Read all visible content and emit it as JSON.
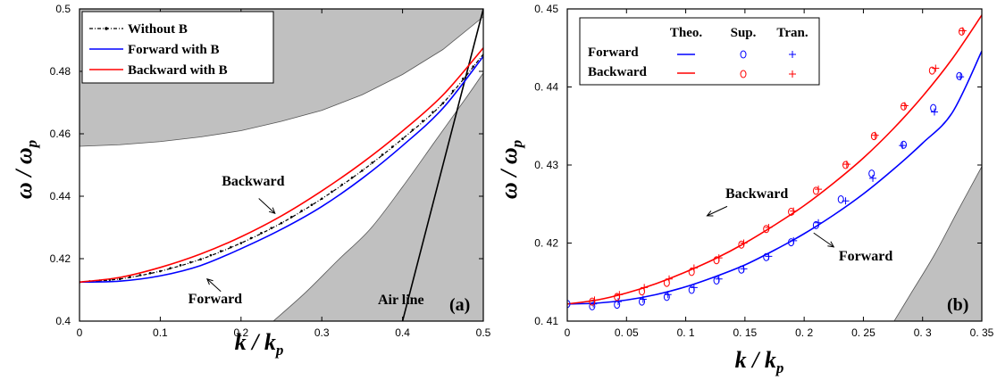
{
  "chart_data": [
    {
      "type": "line",
      "panel_label": "(a)",
      "xlabel": "k / k",
      "xlabel_sub": "p",
      "ylabel": "ω / ω",
      "ylabel_sub": "p",
      "xlim": [
        0,
        0.5
      ],
      "ylim": [
        0.4,
        0.5
      ],
      "xticks": [
        0,
        0.1,
        0.2,
        0.3,
        0.4,
        0.5
      ],
      "xtick_labels": [
        "0",
        "0.1",
        "0.2",
        "0.3",
        "0.4",
        "0.5"
      ],
      "yticks": [
        0.4,
        0.42,
        0.44,
        0.46,
        0.48,
        0.5
      ],
      "ytick_labels": [
        "0.4",
        "0.42",
        "0.44",
        "0.46",
        "0.48",
        "0.5"
      ],
      "legend_position": "top-left",
      "series": [
        {
          "name": "Without B",
          "color": "#000000",
          "style": "dash-dot-marker",
          "x": [
            0,
            0.05,
            0.1,
            0.15,
            0.2,
            0.25,
            0.3,
            0.35,
            0.4,
            0.45,
            0.5
          ],
          "y": [
            0.4125,
            0.4135,
            0.416,
            0.4198,
            0.425,
            0.4314,
            0.4392,
            0.4482,
            0.4584,
            0.4698,
            0.4855
          ]
        },
        {
          "name": "Forward with B",
          "color": "#0000ff",
          "style": "solid",
          "x": [
            0,
            0.05,
            0.1,
            0.15,
            0.2,
            0.25,
            0.3,
            0.35,
            0.4,
            0.45,
            0.5
          ],
          "y": [
            0.4125,
            0.4128,
            0.4145,
            0.4178,
            0.4232,
            0.4294,
            0.4367,
            0.4457,
            0.4562,
            0.4682,
            0.4848
          ]
        },
        {
          "name": "Backward with B",
          "color": "#ff0000",
          "style": "solid",
          "x": [
            0,
            0.05,
            0.1,
            0.15,
            0.2,
            0.25,
            0.3,
            0.35,
            0.4,
            0.45,
            0.5
          ],
          "y": [
            0.4125,
            0.414,
            0.4172,
            0.4215,
            0.427,
            0.4337,
            0.4417,
            0.4507,
            0.4609,
            0.4724,
            0.4875
          ]
        }
      ],
      "shaded_regions": [
        {
          "x": [
            0,
            0.05,
            0.1,
            0.15,
            0.2,
            0.25,
            0.3,
            0.35,
            0.4,
            0.45,
            0.5
          ],
          "lower": [
            0.456,
            0.4565,
            0.4575,
            0.459,
            0.461,
            0.464,
            0.4675,
            0.4725,
            0.479,
            0.487,
            0.4975
          ],
          "upper": [
            0.5,
            0.5,
            0.5,
            0.5,
            0.5,
            0.5,
            0.5,
            0.5,
            0.5,
            0.5,
            0.5
          ]
        },
        {
          "x": [
            0.24,
            0.28,
            0.32,
            0.36,
            0.4,
            0.44,
            0.48,
            0.5
          ],
          "lower": [
            0.4,
            0.4,
            0.4,
            0.4,
            0.4,
            0.4,
            0.4,
            0.4
          ],
          "upper": [
            0.4,
            0.4092,
            0.4195,
            0.4295,
            0.443,
            0.4575,
            0.472,
            0.4795
          ]
        }
      ],
      "air_line": {
        "x": [
          0.4,
          0.5
        ],
        "y": [
          0.4,
          0.5
        ]
      },
      "annotations": [
        {
          "text": "Backward",
          "x": 0.215,
          "y": 0.4435
        },
        {
          "text": "Forward",
          "x": 0.168,
          "y": 0.4057
        },
        {
          "text": "Air line",
          "x": 0.398,
          "y": 0.4055
        }
      ],
      "arrows": [
        {
          "from": [
            0.222,
            0.4393
          ],
          "to": [
            0.242,
            0.4345
          ]
        },
        {
          "from": [
            0.175,
            0.4095
          ],
          "to": [
            0.158,
            0.4135
          ]
        }
      ]
    },
    {
      "type": "line",
      "panel_label": "(b)",
      "xlabel": "k / k",
      "xlabel_sub": "p",
      "ylabel": "ω / ω",
      "ylabel_sub": "p",
      "xlim": [
        0,
        0.35
      ],
      "ylim": [
        0.41,
        0.45
      ],
      "xticks": [
        0,
        0.05,
        0.1,
        0.15,
        0.2,
        0.25,
        0.3,
        0.35
      ],
      "xtick_labels": [
        "0",
        "0. 05",
        "0. 1",
        "0. 15",
        "0. 2",
        "0. 25",
        "0. 3",
        "0. 35"
      ],
      "yticks": [
        0.41,
        0.42,
        0.43,
        0.44,
        0.45
      ],
      "ytick_labels": [
        "0. 41",
        "0. 42",
        "0. 43",
        "0. 44",
        "0. 45"
      ],
      "legend_position": "top-left",
      "legend": {
        "columns": [
          "Theo.",
          "Sup.",
          "Tran."
        ],
        "rows": [
          {
            "name": "Forward",
            "color": "#0000ff"
          },
          {
            "name": "Backward",
            "color": "#ff0000"
          }
        ]
      },
      "series": [
        {
          "name": "Forward",
          "kind": "Theo.",
          "color": "#0000ff",
          "x": [
            0,
            0.025,
            0.05,
            0.075,
            0.1,
            0.125,
            0.15,
            0.175,
            0.2,
            0.225,
            0.25,
            0.275,
            0.3,
            0.325,
            0.35
          ],
          "y": [
            0.4122,
            0.4123,
            0.4127,
            0.4134,
            0.4144,
            0.4157,
            0.4172,
            0.4191,
            0.4212,
            0.4236,
            0.4263,
            0.4294,
            0.4328,
            0.4367,
            0.4446
          ]
        },
        {
          "name": "Backward",
          "kind": "Theo.",
          "color": "#ff0000",
          "x": [
            0,
            0.025,
            0.05,
            0.075,
            0.1,
            0.125,
            0.15,
            0.175,
            0.2,
            0.225,
            0.25,
            0.275,
            0.3,
            0.325,
            0.35
          ],
          "y": [
            0.4122,
            0.4127,
            0.4136,
            0.4148,
            0.4163,
            0.418,
            0.42,
            0.4223,
            0.4248,
            0.4277,
            0.4309,
            0.4346,
            0.4388,
            0.4436,
            0.4492
          ]
        },
        {
          "name": "Forward",
          "kind": "Sup.",
          "color": "#0000ff",
          "marker": "circle",
          "x": [
            0,
            0.021,
            0.042,
            0.063,
            0.084,
            0.105,
            0.126,
            0.147,
            0.168,
            0.189,
            0.21,
            0.231,
            0.257,
            0.284,
            0.309,
            0.331
          ],
          "y": [
            0.4122,
            0.4119,
            0.4121,
            0.4125,
            0.4131,
            0.414,
            0.4152,
            0.4166,
            0.4182,
            0.4201,
            0.4223,
            0.4256,
            0.4289,
            0.4326,
            0.4373,
            0.4414
          ]
        },
        {
          "name": "Forward",
          "kind": "Tran.",
          "color": "#0000ff",
          "marker": "plus",
          "x": [
            0.022,
            0.043,
            0.064,
            0.085,
            0.107,
            0.128,
            0.149,
            0.17,
            0.191,
            0.212,
            0.235,
            0.258,
            0.283,
            0.31,
            0.332
          ],
          "y": [
            0.4122,
            0.4125,
            0.4128,
            0.4134,
            0.4143,
            0.4154,
            0.4167,
            0.4183,
            0.4203,
            0.4226,
            0.4254,
            0.4283,
            0.4325,
            0.4368,
            0.4413
          ]
        },
        {
          "name": "Backward",
          "kind": "Sup.",
          "color": "#ff0000",
          "marker": "circle",
          "x": [
            0.021,
            0.042,
            0.063,
            0.084,
            0.105,
            0.126,
            0.147,
            0.168,
            0.189,
            0.21,
            0.235,
            0.259,
            0.284,
            0.308,
            0.333
          ],
          "y": [
            0.4125,
            0.4131,
            0.4138,
            0.4149,
            0.4163,
            0.4178,
            0.4198,
            0.4218,
            0.424,
            0.4267,
            0.43,
            0.4337,
            0.4375,
            0.4421,
            0.4471
          ]
        },
        {
          "name": "Backward",
          "kind": "Tran.",
          "color": "#ff0000",
          "marker": "plus",
          "x": [
            0.023,
            0.044,
            0.065,
            0.086,
            0.107,
            0.128,
            0.149,
            0.17,
            0.191,
            0.212,
            0.236,
            0.26,
            0.285,
            0.311,
            0.334
          ],
          "y": [
            0.4127,
            0.4134,
            0.4143,
            0.4154,
            0.4168,
            0.4181,
            0.42,
            0.422,
            0.4241,
            0.4269,
            0.4301,
            0.4338,
            0.4376,
            0.4424,
            0.4472
          ]
        }
      ],
      "shaded_regions": [
        {
          "x": [
            0.276,
            0.29,
            0.31,
            0.33,
            0.35
          ],
          "lower": [
            0.41,
            0.41,
            0.41,
            0.41,
            0.41
          ],
          "upper": [
            0.41,
            0.4135,
            0.4185,
            0.4242,
            0.4298
          ]
        }
      ],
      "annotations": [
        {
          "text": "Backward",
          "x": 0.16,
          "y": 0.4258
        },
        {
          "text": "Forward",
          "x": 0.252,
          "y": 0.4178
        }
      ],
      "arrows": [
        {
          "from": [
            0.135,
            0.4247
          ],
          "to": [
            0.118,
            0.4235
          ]
        },
        {
          "from": [
            0.208,
            0.4213
          ],
          "to": [
            0.225,
            0.4195
          ]
        }
      ]
    }
  ],
  "legend_a": [
    {
      "label": "Without B",
      "color": "#000000"
    },
    {
      "label": "Forward  with B",
      "color": "#0000ff"
    },
    {
      "label": "Backward  with B",
      "color": "#ff0000"
    }
  ],
  "colors": {
    "shade": "#c0c0c0",
    "forward": "#0000ff",
    "backward": "#ff0000"
  }
}
